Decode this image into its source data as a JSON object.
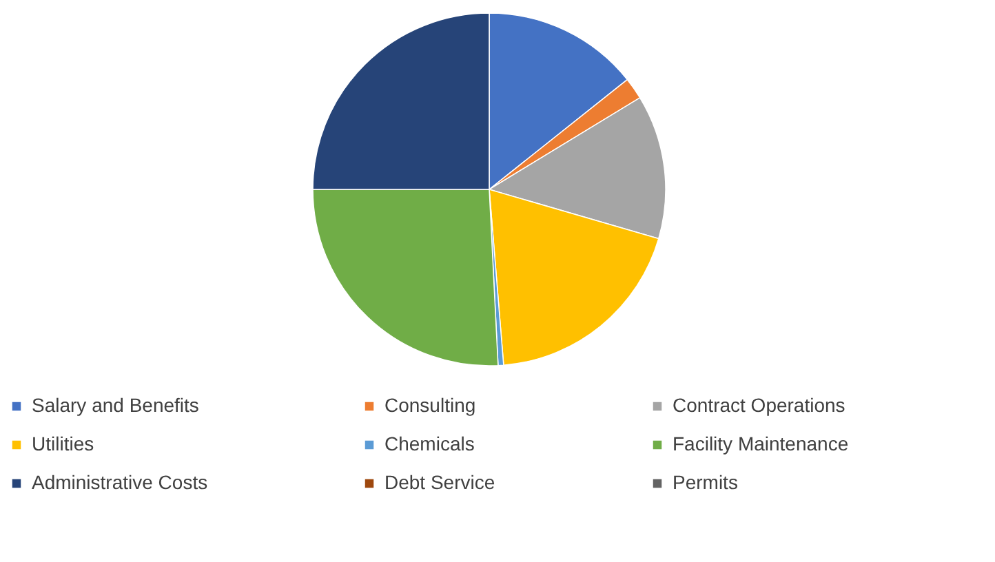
{
  "chart_data": {
    "type": "pie",
    "categories": [
      "Salary and Benefits",
      "Consulting",
      "Contract Operations",
      "Utilities",
      "Chemicals",
      "Debt Service",
      "Permits",
      "Facility Maintenance",
      "Administrative Costs"
    ],
    "values": [
      14.3,
      2.0,
      13.2,
      19.2,
      0.5,
      0,
      0,
      25.8,
      25.0
    ],
    "colors": [
      "#4472c4",
      "#ed7d31",
      "#a5a5a5",
      "#ffc000",
      "#5b9bd5",
      "#9e480e",
      "#636363",
      "#70ad47",
      "#264478"
    ],
    "legend": "bottom"
  }
}
